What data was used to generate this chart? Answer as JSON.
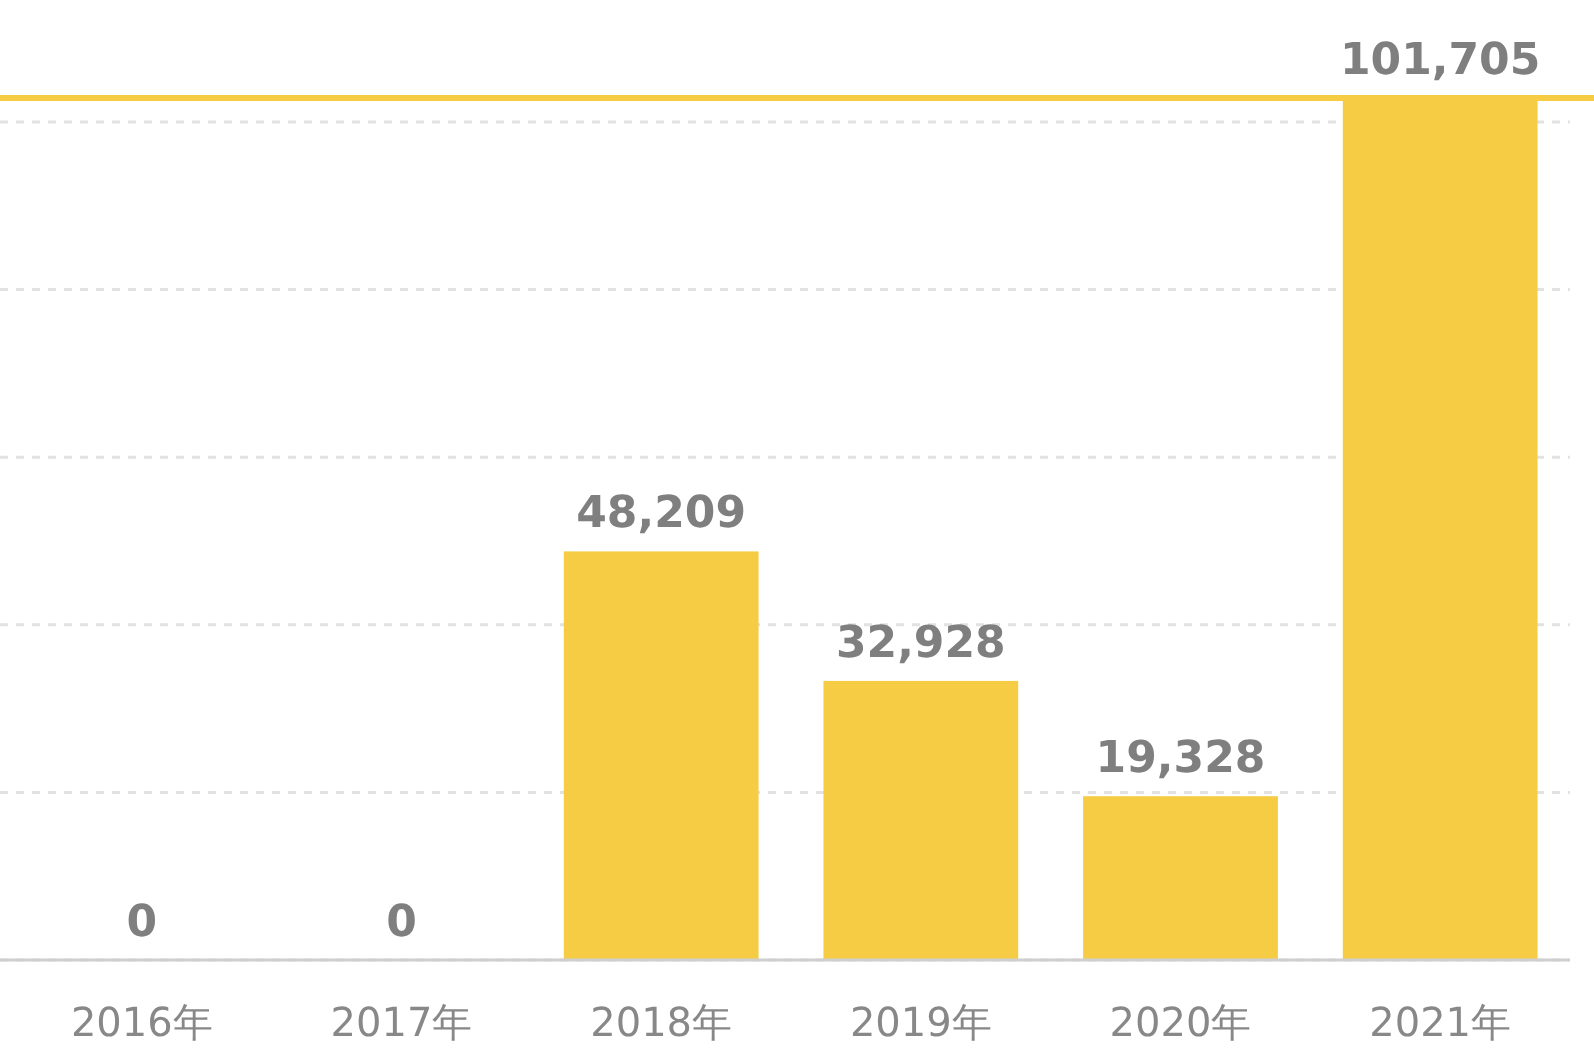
{
  "chart_data": {
    "type": "bar",
    "categories": [
      "2016年",
      "2017年",
      "2018年",
      "2019年",
      "2020年",
      "2021年"
    ],
    "values": [
      0,
      0,
      48209,
      32928,
      19328,
      101705
    ],
    "color": "#f5cc44",
    "value_labels": [
      "0",
      "0",
      "48,209",
      "32,928",
      "19,328",
      "101,705"
    ],
    "tick_labels": "x",
    "grid": "y",
    "ref_lines": [
      {
        "axis": "y",
        "value": 101705,
        "color": "#f5cc44",
        "line_style": "solid"
      }
    ]
  }
}
